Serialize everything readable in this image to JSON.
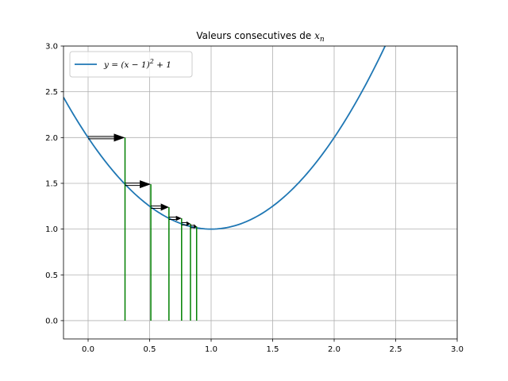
{
  "chart_data": {
    "type": "line",
    "title": "Valeurs consecutives de ",
    "title_math": "x",
    "title_math_sub": "n",
    "xlabel": "",
    "ylabel": "",
    "xlim": [
      -0.2,
      3.0
    ],
    "ylim": [
      -0.2,
      3.0
    ],
    "grid": true,
    "legend_position": "top-left",
    "x_ticks": [
      0.0,
      0.5,
      1.0,
      1.5,
      2.0,
      2.5,
      3.0
    ],
    "x_tick_labels": [
      "0.0",
      "0.5",
      "1.0",
      "1.5",
      "2.0",
      "2.5",
      "3.0"
    ],
    "y_ticks": [
      0.0,
      0.5,
      1.0,
      1.5,
      2.0,
      2.5,
      3.0
    ],
    "y_tick_labels": [
      "0.0",
      "0.5",
      "1.0",
      "1.5",
      "2.0",
      "2.5",
      "3.0"
    ],
    "series": [
      {
        "name": "y = (x − 1)² + 1",
        "legend_text": "y = (x − 1)",
        "legend_sup": "2",
        "legend_tail": " + 1",
        "function": "(x-1)^2+1",
        "color": "#1f77b4"
      }
    ],
    "iterates": {
      "x": [
        0.0,
        0.3,
        0.51,
        0.657,
        0.76,
        0.832,
        0.882
      ],
      "y": [
        2.0,
        1.49,
        1.24,
        1.118,
        1.058,
        1.028,
        1.014
      ],
      "stem_color": "#008000",
      "arrow_color": "#000000"
    }
  }
}
